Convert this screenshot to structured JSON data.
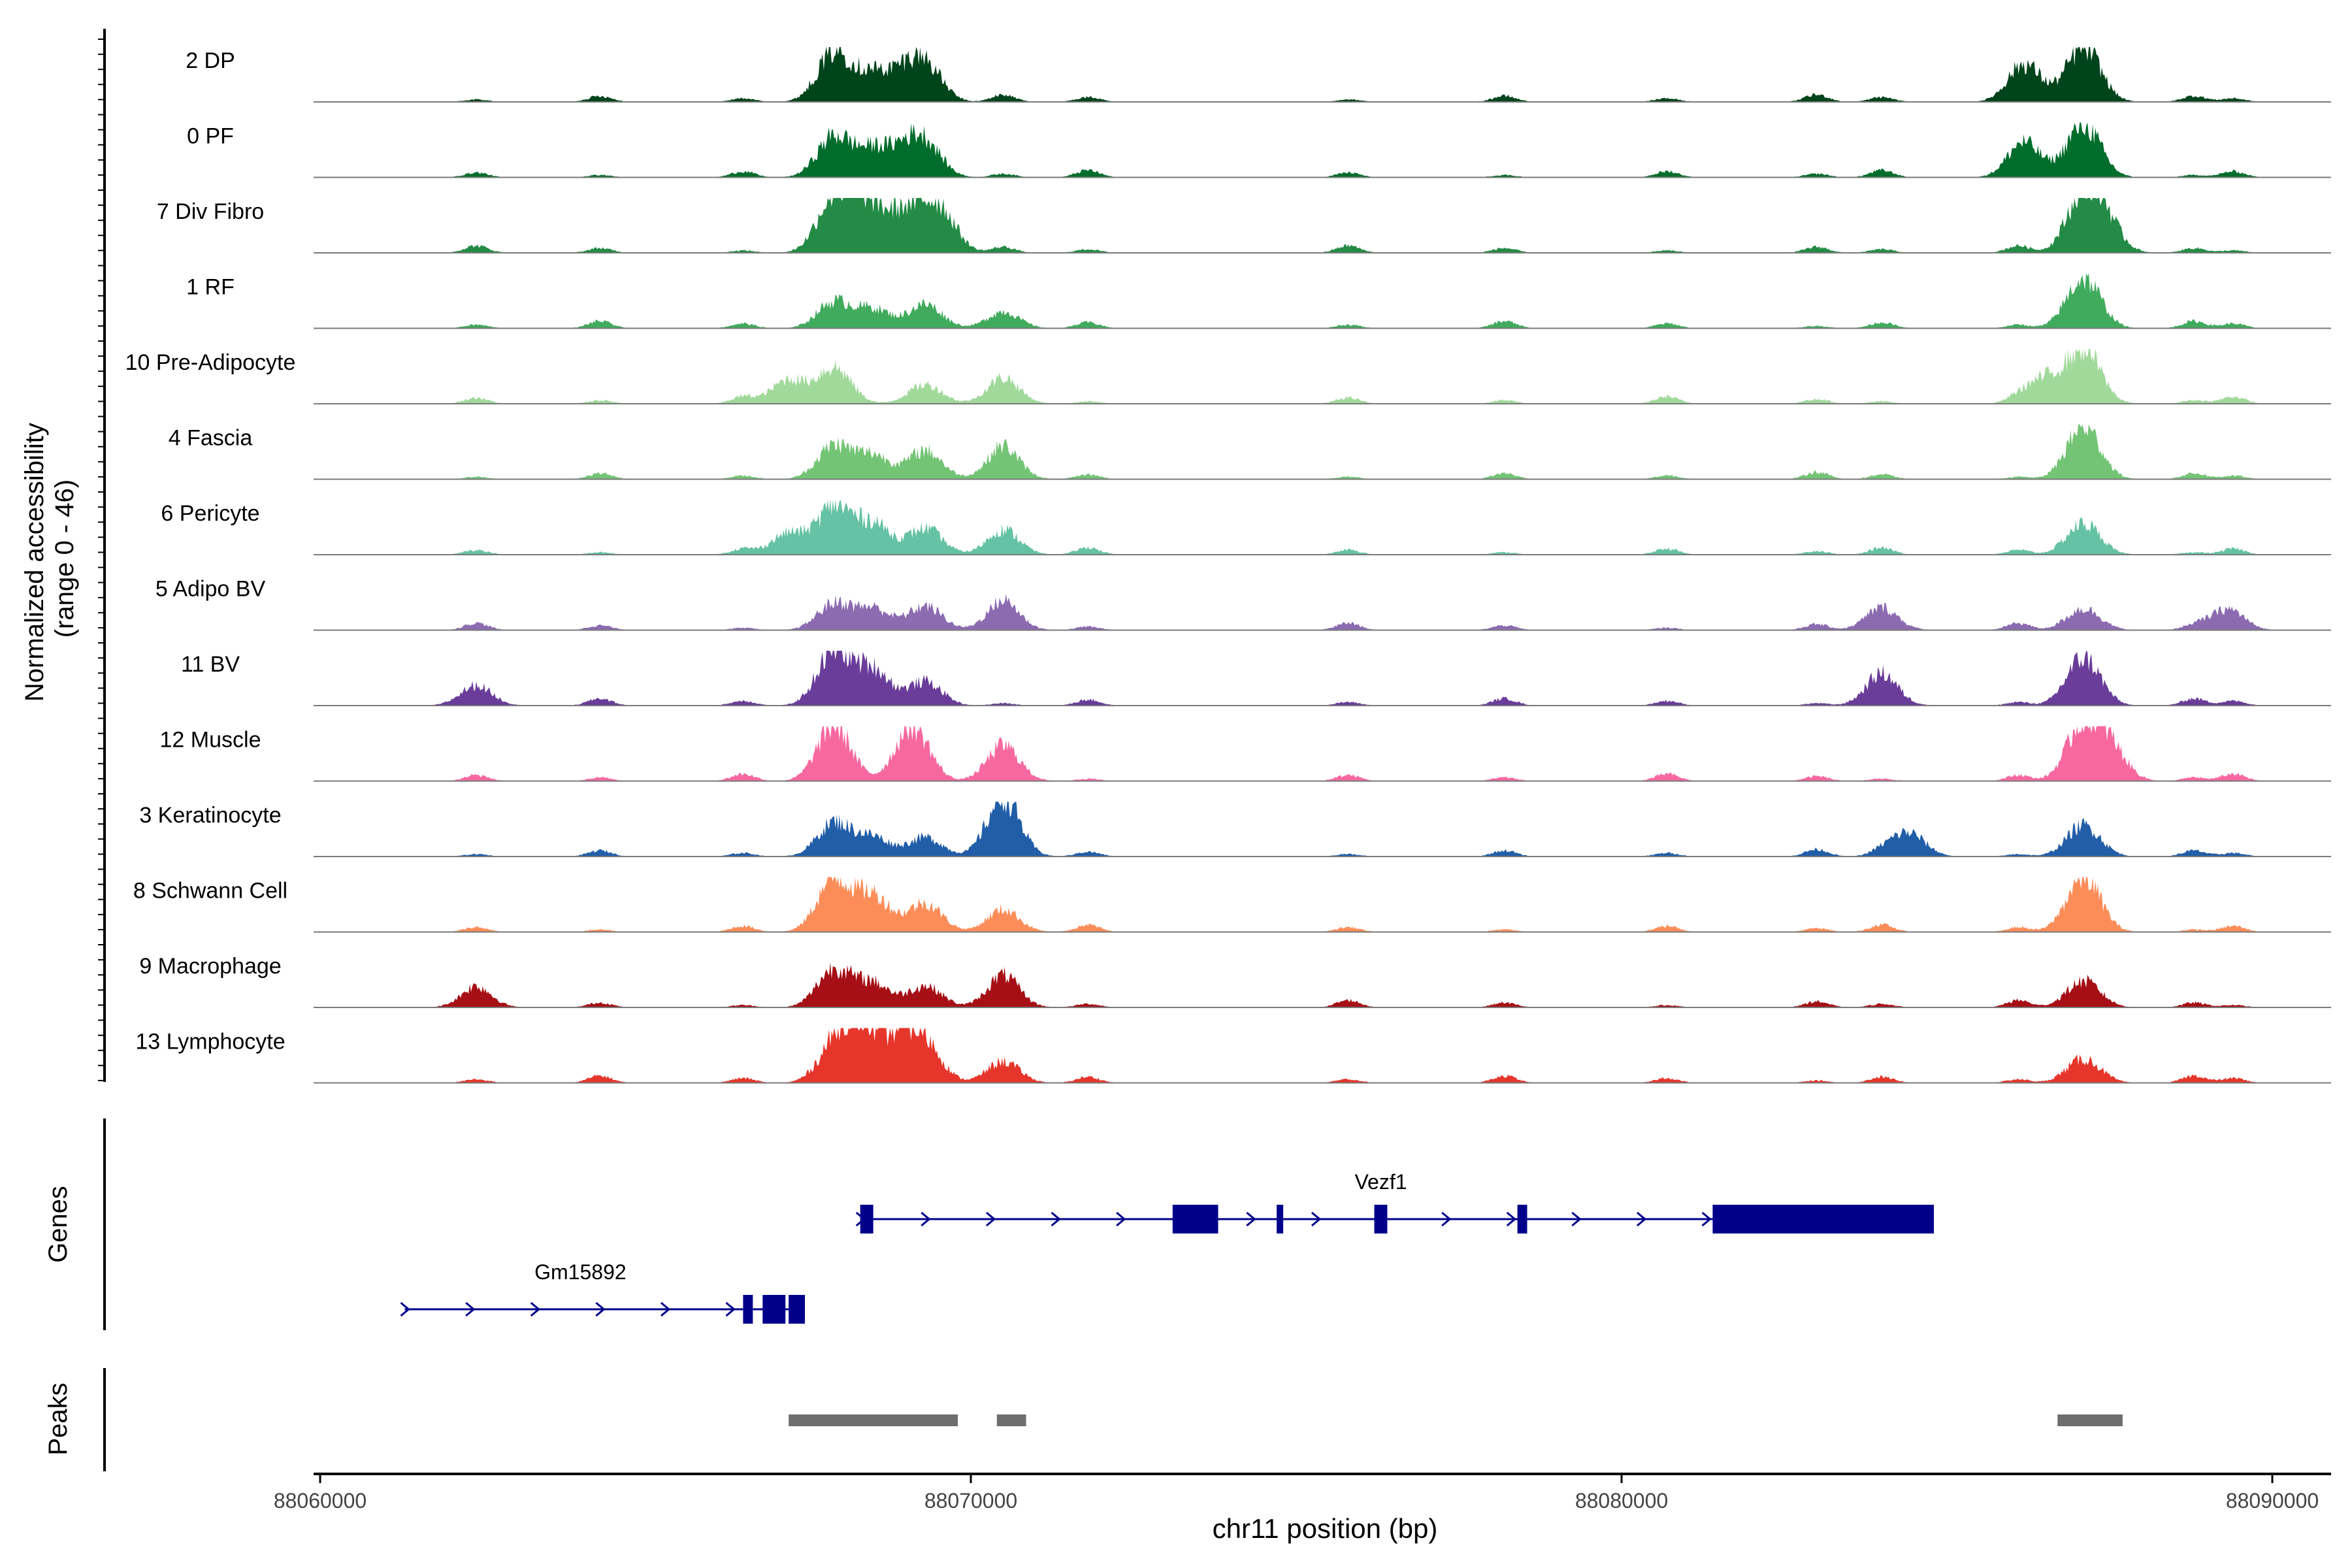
{
  "chart_data": {
    "type": "area",
    "region": {
      "chromosome": "chr11",
      "start": 88060000,
      "end": 88090000
    },
    "xlabel": "chr11 position (bp)",
    "x_ticks": [
      88060000,
      88070000,
      88080000,
      88090000
    ],
    "x_tick_labels": [
      "88060000",
      "88070000",
      "88080000",
      "88090000"
    ],
    "ylabel": "Normalized accessibility\n(range 0 - 46)",
    "ylabel_lines": [
      "Normalized accessibility",
      "(range 0 - 46)"
    ],
    "ylim": [
      0,
      46
    ],
    "genes_label": "Genes",
    "peaks_label": "Peaks",
    "tracks": [
      {
        "name": "2 DP",
        "color": "#00441b",
        "peaks": [
          [
            88067900,
            42
          ],
          [
            88068500,
            22
          ],
          [
            88069000,
            18
          ],
          [
            88069300,
            28
          ],
          [
            88086200,
            30
          ],
          [
            88087100,
            46
          ]
        ]
      },
      {
        "name": "0 PF",
        "color": "#006d2c",
        "peaks": [
          [
            88067900,
            34
          ],
          [
            88068500,
            22
          ],
          [
            88069000,
            18
          ],
          [
            88069300,
            25
          ],
          [
            88086200,
            26
          ],
          [
            88087100,
            44
          ]
        ]
      },
      {
        "name": "7 Div Fibro",
        "color": "#238b45",
        "peaks": [
          [
            88067900,
            46
          ],
          [
            88068400,
            40
          ],
          [
            88069000,
            32
          ],
          [
            88069500,
            38
          ],
          [
            88087100,
            46
          ],
          [
            88087400,
            24
          ]
        ]
      },
      {
        "name": "1 RF",
        "color": "#41ab5d",
        "peaks": [
          [
            88067900,
            22
          ],
          [
            88068500,
            16
          ],
          [
            88069300,
            20
          ],
          [
            88070500,
            12
          ],
          [
            88087100,
            42
          ]
        ]
      },
      {
        "name": "10 Pre-Adipocyte",
        "color": "#a1d99b",
        "peaks": [
          [
            88067200,
            20
          ],
          [
            88067900,
            30
          ],
          [
            88069300,
            16
          ],
          [
            88070500,
            18
          ],
          [
            88087100,
            46
          ],
          [
            88086500,
            20
          ]
        ]
      },
      {
        "name": "4 Fascia",
        "color": "#74c476",
        "peaks": [
          [
            88067900,
            28
          ],
          [
            88068500,
            20
          ],
          [
            88069300,
            24
          ],
          [
            88070500,
            22
          ],
          [
            88087100,
            44
          ]
        ]
      },
      {
        "name": "6 Pericyte",
        "color": "#66c2a4",
        "peaks": [
          [
            88067200,
            18
          ],
          [
            88067900,
            40
          ],
          [
            88068500,
            26
          ],
          [
            88069300,
            22
          ],
          [
            88070500,
            18
          ],
          [
            88087100,
            26
          ]
        ]
      },
      {
        "name": "5 Adipo BV",
        "color": "#8c6bb1",
        "peaks": [
          [
            88067900,
            22
          ],
          [
            88068500,
            18
          ],
          [
            88069300,
            20
          ],
          [
            88070500,
            20
          ],
          [
            88084000,
            16
          ],
          [
            88087100,
            18
          ],
          [
            88089300,
            16
          ]
        ]
      },
      {
        "name": "11 BV",
        "color": "#6a3d9a",
        "peaks": [
          [
            88062400,
            14
          ],
          [
            88067900,
            46
          ],
          [
            88068500,
            30
          ],
          [
            88069300,
            20
          ],
          [
            88084000,
            22
          ],
          [
            88087100,
            40
          ]
        ]
      },
      {
        "name": "12 Muscle",
        "color": "#f768a1",
        "peaks": [
          [
            88067900,
            46
          ],
          [
            88069100,
            46
          ],
          [
            88070500,
            26
          ],
          [
            88087100,
            46
          ],
          [
            88087500,
            26
          ]
        ]
      },
      {
        "name": "3 Keratinocyte",
        "color": "#225ea8",
        "peaks": [
          [
            88067900,
            28
          ],
          [
            88068500,
            16
          ],
          [
            88069300,
            16
          ],
          [
            88070500,
            44
          ],
          [
            88084400,
            20
          ],
          [
            88087100,
            26
          ]
        ]
      },
      {
        "name": "8 Schwann Cell",
        "color": "#fc8d59",
        "peaks": [
          [
            88067900,
            44
          ],
          [
            88068500,
            30
          ],
          [
            88069300,
            24
          ],
          [
            88070500,
            16
          ],
          [
            88087100,
            46
          ]
        ]
      },
      {
        "name": "9 Macrophage",
        "color": "#a50f15",
        "peaks": [
          [
            88062400,
            12
          ],
          [
            88067900,
            32
          ],
          [
            88068500,
            20
          ],
          [
            88069300,
            18
          ],
          [
            88070500,
            22
          ],
          [
            88087100,
            22
          ]
        ]
      },
      {
        "name": "13 Lymphocyte",
        "color": "#e6362b",
        "peaks": [
          [
            88067900,
            28
          ],
          [
            88068300,
            46
          ],
          [
            88068900,
            34
          ],
          [
            88069300,
            30
          ],
          [
            88070500,
            16
          ],
          [
            88087100,
            20
          ]
        ]
      }
    ],
    "genes": [
      {
        "name": "Vezf1",
        "color": "#00008b",
        "strand": "+",
        "start": 88068300,
        "end": 88084800,
        "exons": [
          [
            88068300,
            88068500
          ],
          [
            88073100,
            88073800
          ],
          [
            88074700,
            88074800
          ],
          [
            88076200,
            88076400
          ],
          [
            88078400,
            88078550
          ],
          [
            88081400,
            88084800
          ]
        ]
      },
      {
        "name": "Gm15892",
        "color": "#00008b",
        "strand": "+",
        "start": 88061300,
        "end": 88067400,
        "exons": [
          [
            88066500,
            88066650
          ],
          [
            88066800,
            88067150
          ],
          [
            88067200,
            88067450
          ]
        ]
      }
    ],
    "peaks": [
      [
        88067200,
        88069800
      ],
      [
        88070400,
        88070850
      ],
      [
        88086700,
        88087700
      ]
    ],
    "peak_color": "#6e6e6e"
  }
}
